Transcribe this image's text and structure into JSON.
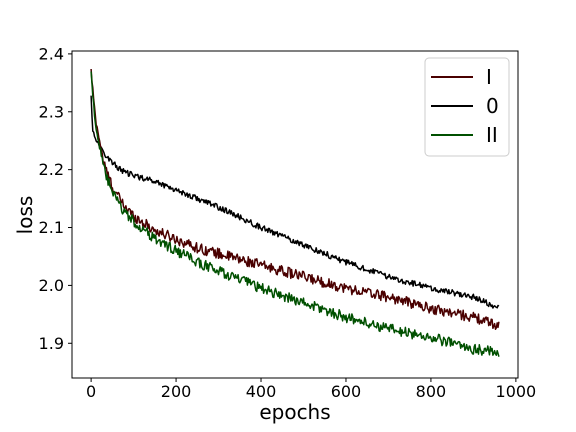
{
  "chart_data": {
    "type": "line",
    "title": "",
    "xlabel": "epochs",
    "ylabel": "loss",
    "xlim": [
      -45,
      1005
    ],
    "ylim": [
      1.84,
      2.405
    ],
    "xticks": [
      0,
      200,
      400,
      600,
      800,
      1000
    ],
    "xtick_labels": [
      "0",
      "200",
      "400",
      "600",
      "800",
      "1000"
    ],
    "yticks": [
      1.9,
      2.0,
      2.1,
      2.2,
      2.3,
      2.4
    ],
    "ytick_labels": [
      "1.9",
      "2.0",
      "2.1",
      "2.2",
      "2.3",
      "2.4"
    ],
    "grid": false,
    "legend_position": "top-right",
    "x_range": [
      0,
      960
    ],
    "series": [
      {
        "name": "I",
        "color": "#4a0000",
        "noise": 0.009,
        "x": [
          0,
          5,
          10,
          20,
          30,
          50,
          75,
          100,
          150,
          200,
          250,
          300,
          400,
          500,
          600,
          700,
          800,
          900,
          960
        ],
        "values": [
          2.37,
          2.33,
          2.29,
          2.25,
          2.21,
          2.17,
          2.14,
          2.12,
          2.095,
          2.08,
          2.065,
          2.055,
          2.035,
          2.015,
          1.995,
          1.98,
          1.96,
          1.945,
          1.93
        ]
      },
      {
        "name": "0",
        "color": "#000000",
        "noise": 0.005,
        "x": [
          0,
          3,
          10,
          20,
          40,
          60,
          80,
          100,
          150,
          200,
          300,
          400,
          500,
          600,
          700,
          800,
          900,
          960
        ],
        "values": [
          2.33,
          2.27,
          2.255,
          2.24,
          2.22,
          2.205,
          2.195,
          2.19,
          2.18,
          2.165,
          2.135,
          2.1,
          2.07,
          2.04,
          2.015,
          1.995,
          1.98,
          1.96
        ]
      },
      {
        "name": "II",
        "color": "#005000",
        "noise": 0.009,
        "x": [
          0,
          5,
          10,
          20,
          30,
          50,
          75,
          100,
          150,
          200,
          250,
          300,
          400,
          500,
          600,
          700,
          800,
          900,
          960
        ],
        "values": [
          2.37,
          2.32,
          2.28,
          2.24,
          2.2,
          2.16,
          2.13,
          2.11,
          2.08,
          2.06,
          2.04,
          2.025,
          1.995,
          1.97,
          1.945,
          1.925,
          1.91,
          1.89,
          1.885
        ]
      }
    ]
  }
}
